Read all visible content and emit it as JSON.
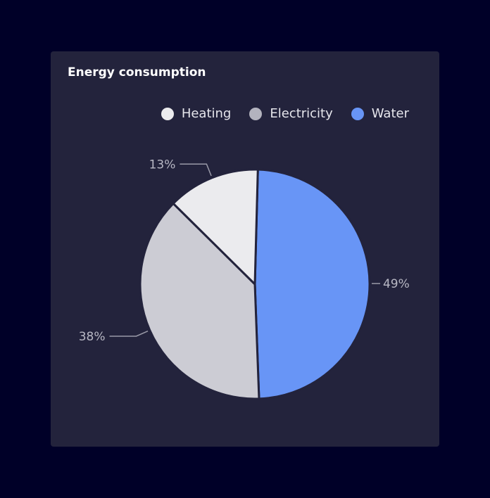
{
  "chart_data": {
    "type": "pie",
    "title": "Energy consumption",
    "slices": [
      {
        "name": "Water",
        "value": 49,
        "label": "49%",
        "color": "#6895f6",
        "legend_color": "#6895f6"
      },
      {
        "name": "Electricity",
        "value": 38,
        "label": "38%",
        "color": "#ccccd4",
        "legend_color": "#b3b3be"
      },
      {
        "name": "Heating",
        "value": 13,
        "label": "13%",
        "color": "#ebebee",
        "legend_color": "#ebebee"
      }
    ],
    "legend": {
      "placement": "top-right",
      "order": [
        "Heating",
        "Electricity",
        "Water"
      ]
    },
    "background": "#23233c"
  }
}
